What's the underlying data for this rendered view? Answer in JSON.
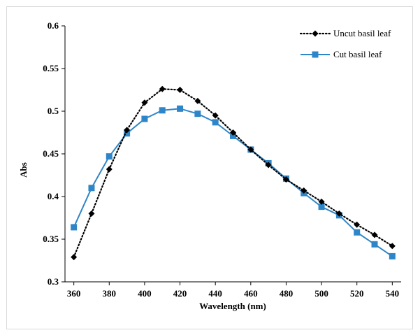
{
  "chart_data": {
    "type": "line",
    "xlabel": "Wavelength (nm)",
    "ylabel": "Abs",
    "xlim": [
      355,
      545
    ],
    "ylim": [
      0.3,
      0.6
    ],
    "x_ticks": [
      360,
      380,
      400,
      420,
      440,
      460,
      480,
      500,
      520,
      540
    ],
    "y_ticks": [
      0.3,
      0.35,
      0.4,
      0.45,
      0.5,
      0.55,
      0.6
    ],
    "y_tick_labels": [
      "0.3",
      "0.35",
      "0.4",
      "0.45",
      "0.5",
      "0.55",
      "0.6"
    ],
    "grid": false,
    "legend_position": "top-right",
    "x": [
      360,
      370,
      380,
      390,
      400,
      410,
      420,
      430,
      440,
      450,
      460,
      470,
      480,
      490,
      500,
      510,
      520,
      530,
      540
    ],
    "series": [
      {
        "name": "Uncut basil leaf",
        "color": "#000000",
        "line_style": "dotted",
        "marker": "diamond",
        "values": [
          0.329,
          0.38,
          0.432,
          0.478,
          0.51,
          0.526,
          0.525,
          0.512,
          0.495,
          0.475,
          0.455,
          0.437,
          0.42,
          0.407,
          0.394,
          0.38,
          0.367,
          0.355,
          0.342
        ]
      },
      {
        "name": "Cut basil leaf",
        "color": "#2e86c8",
        "line_style": "solid",
        "marker": "square",
        "values": [
          0.364,
          0.41,
          0.447,
          0.474,
          0.491,
          0.501,
          0.503,
          0.497,
          0.487,
          0.471,
          0.455,
          0.439,
          0.421,
          0.404,
          0.388,
          0.378,
          0.358,
          0.344,
          0.33
        ]
      }
    ]
  }
}
